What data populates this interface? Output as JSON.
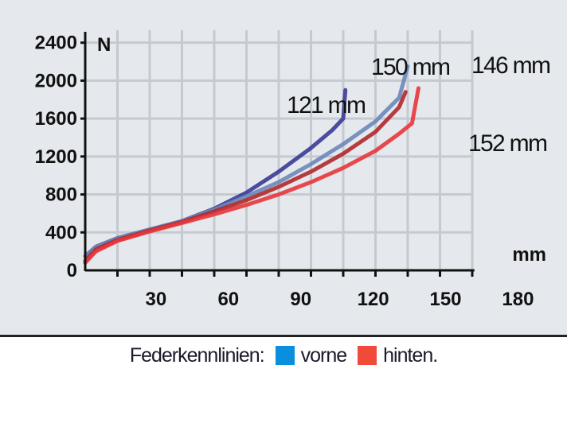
{
  "chart_data": {
    "type": "line",
    "title": "",
    "xlabel": "mm",
    "ylabel": "N",
    "xlim": [
      0,
      180
    ],
    "ylim": [
      0,
      2400
    ],
    "grid": true,
    "x_ticks": [
      "30",
      "60",
      "90",
      "120",
      "150",
      "180"
    ],
    "y_ticks": [
      "0",
      "400",
      "800",
      "1200",
      "1600",
      "2000",
      "2400"
    ],
    "series": [
      {
        "color": "#3b3a96",
        "points": [
          [
            0,
            150
          ],
          [
            5,
            250
          ],
          [
            15,
            340
          ],
          [
            30,
            430
          ],
          [
            45,
            520
          ],
          [
            60,
            650
          ],
          [
            75,
            820
          ],
          [
            90,
            1040
          ],
          [
            105,
            1290
          ],
          [
            115,
            1480
          ],
          [
            120,
            1600
          ],
          [
            121,
            1900
          ]
        ]
      },
      {
        "color": "#6b87b8",
        "points": [
          [
            0,
            150
          ],
          [
            5,
            250
          ],
          [
            15,
            340
          ],
          [
            30,
            430
          ],
          [
            45,
            520
          ],
          [
            60,
            640
          ],
          [
            75,
            780
          ],
          [
            90,
            930
          ],
          [
            105,
            1120
          ],
          [
            120,
            1330
          ],
          [
            135,
            1570
          ],
          [
            146,
            1820
          ],
          [
            150,
            2150
          ]
        ]
      },
      {
        "color": "#b0282a",
        "points": [
          [
            0,
            100
          ],
          [
            5,
            220
          ],
          [
            15,
            320
          ],
          [
            30,
            420
          ],
          [
            45,
            510
          ],
          [
            60,
            620
          ],
          [
            75,
            740
          ],
          [
            90,
            880
          ],
          [
            105,
            1040
          ],
          [
            120,
            1230
          ],
          [
            135,
            1460
          ],
          [
            146,
            1720
          ],
          [
            149,
            1880
          ]
        ]
      },
      {
        "color": "#e8363a",
        "points": [
          [
            0,
            80
          ],
          [
            5,
            200
          ],
          [
            15,
            310
          ],
          [
            30,
            410
          ],
          [
            45,
            500
          ],
          [
            60,
            590
          ],
          [
            75,
            690
          ],
          [
            90,
            800
          ],
          [
            105,
            930
          ],
          [
            120,
            1080
          ],
          [
            135,
            1260
          ],
          [
            146,
            1440
          ],
          [
            152,
            1550
          ],
          [
            155,
            1920
          ]
        ]
      }
    ],
    "annotations": [
      "121 mm",
      "150 mm",
      "146 mm",
      "152 mm"
    ],
    "legend": {
      "label": "Federkennlinien:",
      "placement": "bottom",
      "entries": [
        {
          "name": "vorne",
          "color": "#0a8ede"
        },
        {
          "name": "hinten.",
          "color": "#f04a3a"
        }
      ]
    }
  }
}
